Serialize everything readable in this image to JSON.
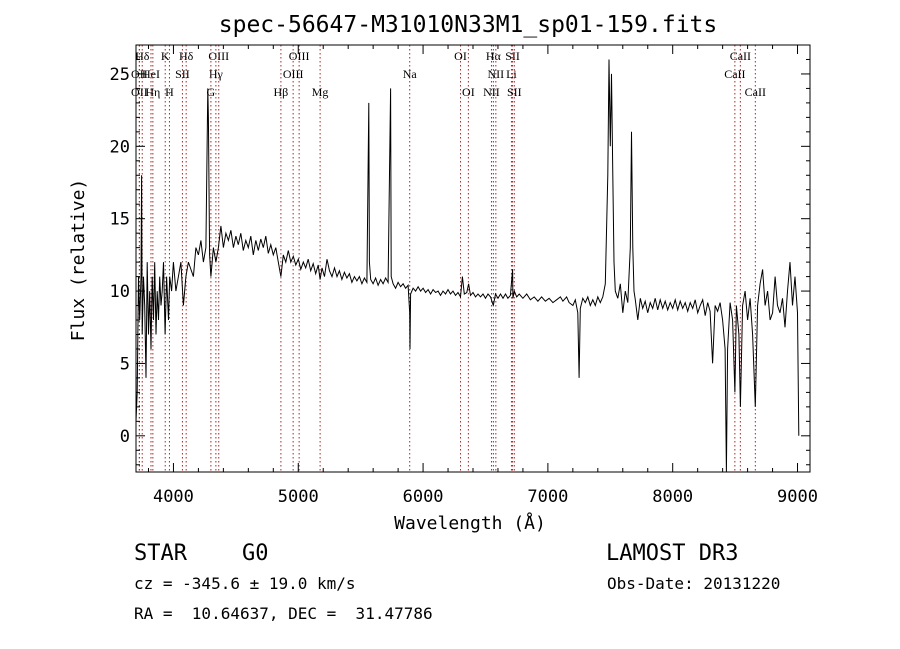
{
  "chart_data": {
    "type": "line",
    "title": "spec-56647-M31010N33M1_sp01-159.fits",
    "xlabel": "Wavelength (Å)",
    "ylabel": "Flux (relative)",
    "xlim": [
      3700,
      9100
    ],
    "ylim": [
      -2.5,
      27
    ],
    "x_ticks": [
      4000,
      5000,
      6000,
      7000,
      8000,
      9000
    ],
    "y_ticks": [
      0,
      5,
      10,
      15,
      20,
      25
    ],
    "grid": false,
    "line_color": "#000000",
    "marker_color": "#b22222",
    "spectrum": [
      [
        3700,
        1
      ],
      [
        3710,
        3
      ],
      [
        3720,
        11
      ],
      [
        3730,
        8
      ],
      [
        3740,
        11
      ],
      [
        3745,
        18
      ],
      [
        3750,
        7
      ],
      [
        3760,
        11
      ],
      [
        3770,
        9
      ],
      [
        3780,
        4
      ],
      [
        3790,
        12
      ],
      [
        3800,
        7
      ],
      [
        3810,
        10
      ],
      [
        3820,
        6
      ],
      [
        3830,
        11
      ],
      [
        3840,
        8
      ],
      [
        3850,
        12
      ],
      [
        3860,
        7
      ],
      [
        3870,
        10
      ],
      [
        3880,
        8
      ],
      [
        3890,
        11
      ],
      [
        3900,
        9
      ],
      [
        3910,
        10
      ],
      [
        3920,
        12
      ],
      [
        3933,
        7
      ],
      [
        3945,
        11
      ],
      [
        3960,
        8
      ],
      [
        3970,
        11
      ],
      [
        3985,
        10
      ],
      [
        4000,
        12
      ],
      [
        4020,
        10
      ],
      [
        4040,
        11
      ],
      [
        4060,
        12
      ],
      [
        4080,
        9
      ],
      [
        4100,
        11
      ],
      [
        4120,
        12
      ],
      [
        4140,
        11.5
      ],
      [
        4160,
        11
      ],
      [
        4180,
        13
      ],
      [
        4200,
        12.5
      ],
      [
        4220,
        13.5
      ],
      [
        4240,
        12
      ],
      [
        4260,
        13
      ],
      [
        4275,
        24
      ],
      [
        4280,
        22
      ],
      [
        4290,
        12.5
      ],
      [
        4300,
        11
      ],
      [
        4320,
        13
      ],
      [
        4340,
        12
      ],
      [
        4360,
        13
      ],
      [
        4380,
        14.5
      ],
      [
        4400,
        13
      ],
      [
        4420,
        14
      ],
      [
        4440,
        13.5
      ],
      [
        4460,
        14.2
      ],
      [
        4480,
        13
      ],
      [
        4500,
        13.8
      ],
      [
        4520,
        13.2
      ],
      [
        4540,
        14
      ],
      [
        4560,
        12.8
      ],
      [
        4580,
        13.5
      ],
      [
        4600,
        13
      ],
      [
        4620,
        13.8
      ],
      [
        4640,
        12.5
      ],
      [
        4660,
        13.5
      ],
      [
        4680,
        12.8
      ],
      [
        4700,
        13.6
      ],
      [
        4720,
        13
      ],
      [
        4740,
        13.8
      ],
      [
        4760,
        12.6
      ],
      [
        4780,
        13.2
      ],
      [
        4800,
        12.5
      ],
      [
        4820,
        13
      ],
      [
        4840,
        12
      ],
      [
        4861,
        11
      ],
      [
        4880,
        12.5
      ],
      [
        4900,
        12
      ],
      [
        4920,
        12.8
      ],
      [
        4940,
        12
      ],
      [
        4960,
        12.4
      ],
      [
        4980,
        11.8
      ],
      [
        5000,
        12.2
      ],
      [
        5020,
        11.5
      ],
      [
        5040,
        12
      ],
      [
        5060,
        11.6
      ],
      [
        5080,
        12.2
      ],
      [
        5100,
        11.4
      ],
      [
        5120,
        11.9
      ],
      [
        5140,
        11.2
      ],
      [
        5160,
        11.8
      ],
      [
        5175,
        10.8
      ],
      [
        5190,
        11.6
      ],
      [
        5210,
        11
      ],
      [
        5230,
        12.2
      ],
      [
        5250,
        11.4
      ],
      [
        5270,
        11
      ],
      [
        5290,
        11.6
      ],
      [
        5310,
        11
      ],
      [
        5330,
        11.4
      ],
      [
        5350,
        10.8
      ],
      [
        5370,
        11.3
      ],
      [
        5390,
        10.9
      ],
      [
        5410,
        11.2
      ],
      [
        5430,
        10.6
      ],
      [
        5450,
        11
      ],
      [
        5470,
        10.7
      ],
      [
        5490,
        11
      ],
      [
        5510,
        10.5
      ],
      [
        5530,
        10.9
      ],
      [
        5550,
        10.6
      ],
      [
        5565,
        23
      ],
      [
        5570,
        12
      ],
      [
        5580,
        10.8
      ],
      [
        5600,
        10.5
      ],
      [
        5620,
        10.9
      ],
      [
        5640,
        10.4
      ],
      [
        5660,
        10.8
      ],
      [
        5680,
        10.5
      ],
      [
        5700,
        10.9
      ],
      [
        5720,
        10.6
      ],
      [
        5740,
        24
      ],
      [
        5745,
        11
      ],
      [
        5760,
        10.5
      ],
      [
        5780,
        10.2
      ],
      [
        5800,
        10.6
      ],
      [
        5820,
        10.3
      ],
      [
        5840,
        10.5
      ],
      [
        5860,
        10.2
      ],
      [
        5880,
        10.4
      ],
      [
        5893,
        8.5
      ],
      [
        5895,
        6
      ],
      [
        5900,
        9.8
      ],
      [
        5920,
        10.2
      ],
      [
        5940,
        10
      ],
      [
        5960,
        10.3
      ],
      [
        5980,
        10
      ],
      [
        6000,
        10.2
      ],
      [
        6020,
        9.9
      ],
      [
        6040,
        10.1
      ],
      [
        6060,
        9.8
      ],
      [
        6080,
        10.1
      ],
      [
        6100,
        9.9
      ],
      [
        6120,
        10
      ],
      [
        6140,
        9.7
      ],
      [
        6160,
        10
      ],
      [
        6180,
        9.8
      ],
      [
        6200,
        10.1
      ],
      [
        6220,
        9.8
      ],
      [
        6240,
        10
      ],
      [
        6260,
        9.7
      ],
      [
        6280,
        9.9
      ],
      [
        6300,
        9.6
      ],
      [
        6315,
        11
      ],
      [
        6330,
        9.8
      ],
      [
        6350,
        9.9
      ],
      [
        6365,
        10.5
      ],
      [
        6380,
        9.7
      ],
      [
        6400,
        9.9
      ],
      [
        6420,
        9.6
      ],
      [
        6440,
        9.8
      ],
      [
        6460,
        9.6
      ],
      [
        6480,
        9.8
      ],
      [
        6500,
        9.5
      ],
      [
        6520,
        9.8
      ],
      [
        6540,
        9.6
      ],
      [
        6563,
        9
      ],
      [
        6580,
        9.8
      ],
      [
        6600,
        9.5
      ],
      [
        6620,
        9.8
      ],
      [
        6640,
        9.5
      ],
      [
        6660,
        9.8
      ],
      [
        6680,
        9.5
      ],
      [
        6700,
        9.7
      ],
      [
        6717,
        11.5
      ],
      [
        6720,
        9.5
      ],
      [
        6731,
        10
      ],
      [
        6750,
        9.6
      ],
      [
        6770,
        9.8
      ],
      [
        6800,
        9.5
      ],
      [
        6830,
        9.8
      ],
      [
        6860,
        9.4
      ],
      [
        6890,
        9.6
      ],
      [
        6920,
        9.3
      ],
      [
        6950,
        9.6
      ],
      [
        6980,
        9.3
      ],
      [
        7010,
        9.5
      ],
      [
        7040,
        9.2
      ],
      [
        7070,
        9.4
      ],
      [
        7100,
        9.6
      ],
      [
        7120,
        9.3
      ],
      [
        7150,
        9.6
      ],
      [
        7170,
        9.2
      ],
      [
        7200,
        9
      ],
      [
        7220,
        9.4
      ],
      [
        7240,
        8.5
      ],
      [
        7250,
        4
      ],
      [
        7260,
        8.8
      ],
      [
        7280,
        9.5
      ],
      [
        7300,
        9.2
      ],
      [
        7320,
        9.6
      ],
      [
        7340,
        9
      ],
      [
        7360,
        9.4
      ],
      [
        7380,
        9
      ],
      [
        7400,
        9.6
      ],
      [
        7420,
        9.2
      ],
      [
        7440,
        9.6
      ],
      [
        7460,
        10.5
      ],
      [
        7480,
        18
      ],
      [
        7490,
        26
      ],
      [
        7500,
        20
      ],
      [
        7510,
        25
      ],
      [
        7520,
        18
      ],
      [
        7530,
        12
      ],
      [
        7540,
        10
      ],
      [
        7560,
        9.5
      ],
      [
        7580,
        10.5
      ],
      [
        7600,
        8.5
      ],
      [
        7620,
        10
      ],
      [
        7640,
        9.2
      ],
      [
        7660,
        13
      ],
      [
        7670,
        21
      ],
      [
        7680,
        13
      ],
      [
        7690,
        10
      ],
      [
        7700,
        9.4
      ],
      [
        7720,
        8
      ],
      [
        7740,
        9.5
      ],
      [
        7760,
        8.8
      ],
      [
        7780,
        9.3
      ],
      [
        7800,
        8.5
      ],
      [
        7820,
        9.2
      ],
      [
        7840,
        8.8
      ],
      [
        7860,
        9.5
      ],
      [
        7880,
        8.7
      ],
      [
        7900,
        9.4
      ],
      [
        7920,
        8.8
      ],
      [
        7940,
        9.3
      ],
      [
        7960,
        8.7
      ],
      [
        7980,
        9.2
      ],
      [
        8000,
        8.8
      ],
      [
        8020,
        9.4
      ],
      [
        8040,
        8.7
      ],
      [
        8060,
        9.3
      ],
      [
        8080,
        8.8
      ],
      [
        8100,
        9.2
      ],
      [
        8120,
        8.6
      ],
      [
        8140,
        9.2
      ],
      [
        8160,
        8.8
      ],
      [
        8180,
        9.4
      ],
      [
        8200,
        8.5
      ],
      [
        8220,
        9
      ],
      [
        8240,
        9.4
      ],
      [
        8260,
        8.3
      ],
      [
        8280,
        9.2
      ],
      [
        8300,
        8.6
      ],
      [
        8320,
        5
      ],
      [
        8340,
        9
      ],
      [
        8360,
        8.6
      ],
      [
        8380,
        9.2
      ],
      [
        8400,
        8
      ],
      [
        8420,
        6
      ],
      [
        8430,
        -2.5
      ],
      [
        8440,
        6
      ],
      [
        8460,
        9.2
      ],
      [
        8480,
        8
      ],
      [
        8498,
        3
      ],
      [
        8510,
        9
      ],
      [
        8530,
        7
      ],
      [
        8542,
        2
      ],
      [
        8560,
        9
      ],
      [
        8580,
        10
      ],
      [
        8600,
        8
      ],
      [
        8620,
        9.5
      ],
      [
        8640,
        7
      ],
      [
        8662,
        2
      ],
      [
        8680,
        9
      ],
      [
        8700,
        10.5
      ],
      [
        8720,
        11.5
      ],
      [
        8740,
        9
      ],
      [
        8760,
        10
      ],
      [
        8780,
        8
      ],
      [
        8800,
        8.5
      ],
      [
        8820,
        11
      ],
      [
        8840,
        9
      ],
      [
        8860,
        8.5
      ],
      [
        8880,
        9.5
      ],
      [
        8900,
        7.5
      ],
      [
        8920,
        10
      ],
      [
        8940,
        12
      ],
      [
        8960,
        9
      ],
      [
        8980,
        11
      ],
      [
        9000,
        8.5
      ],
      [
        9010,
        0
      ]
    ],
    "line_markers": [
      {
        "label": "Hδ",
        "x": 3750,
        "row": 0
      },
      {
        "label": "K",
        "x": 3934,
        "row": 0
      },
      {
        "label": "Hδ",
        "x": 4102,
        "row": 0
      },
      {
        "label": "OIII",
        "x": 4363,
        "row": 0
      },
      {
        "label": "OIII",
        "x": 5007,
        "row": 0
      },
      {
        "label": "OI",
        "x": 6300,
        "row": 0
      },
      {
        "label": "Hα",
        "x": 6563,
        "row": 0
      },
      {
        "label": "SII",
        "x": 6717,
        "row": 0
      },
      {
        "label": "CaII",
        "x": 8542,
        "row": 0
      },
      {
        "label": "OII",
        "x": 3727,
        "row": 1
      },
      {
        "label": "HeI",
        "x": 3820,
        "row": 1
      },
      {
        "label": "SII",
        "x": 4072,
        "row": 1
      },
      {
        "label": "Hγ",
        "x": 4340,
        "row": 1
      },
      {
        "label": "OIII",
        "x": 4959,
        "row": 1
      },
      {
        "label": "NII",
        "x": 6583,
        "row": 1
      },
      {
        "label": "Li",
        "x": 6708,
        "row": 1
      },
      {
        "label": "CaII",
        "x": 8498,
        "row": 1
      },
      {
        "label": "Na",
        "x": 5893,
        "row": 1.2
      },
      {
        "label": "OII",
        "x": 3727,
        "row": 2
      },
      {
        "label": "Hη",
        "x": 3835,
        "row": 2
      },
      {
        "label": "H",
        "x": 3968,
        "row": 2
      },
      {
        "label": "G",
        "x": 4300,
        "row": 2
      },
      {
        "label": "Hβ",
        "x": 4861,
        "row": 2
      },
      {
        "label": "Mg",
        "x": 5175,
        "row": 2
      },
      {
        "label": "OI",
        "x": 6363,
        "row": 2
      },
      {
        "label": "NII",
        "x": 6548,
        "row": 2
      },
      {
        "label": "SII",
        "x": 6731,
        "row": 2
      },
      {
        "label": "CaII",
        "x": 8662,
        "row": 2
      }
    ]
  },
  "info": {
    "class": "STAR",
    "subclass": "G0",
    "survey": "LAMOST DR3",
    "cz": "cz = -345.6 ± 19.0 km/s",
    "obs_date": "Obs-Date: 20131220",
    "coords": "RA =  10.64637, DEC =  31.47786"
  }
}
